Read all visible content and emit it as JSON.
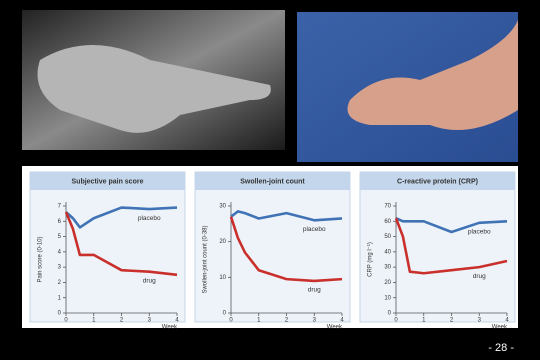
{
  "chart_data": [
    {
      "type": "line",
      "title": "Subjective pain score",
      "ylabel": "Pain score (0-10)",
      "xlabel": "Week",
      "x": [
        0,
        0.25,
        0.5,
        1,
        2,
        3,
        4
      ],
      "xlim": [
        0,
        4
      ],
      "xticks": [
        0,
        1,
        2,
        3,
        4
      ],
      "ylim": [
        0,
        7
      ],
      "yticks": [
        0,
        1,
        2,
        3,
        4,
        5,
        6,
        7
      ],
      "series": [
        {
          "name": "placebo",
          "color": "#3f73b5",
          "values": [
            6.6,
            6.2,
            5.6,
            6.2,
            6.9,
            6.8,
            6.9
          ]
        },
        {
          "name": "drug",
          "color": "#c9302c",
          "values": [
            6.6,
            5.5,
            3.8,
            3.8,
            2.8,
            2.7,
            2.5
          ]
        }
      ]
    },
    {
      "type": "line",
      "title": "Swollen-joint count",
      "ylabel": "Swollen-joint count (0-38)",
      "xlabel": "Week",
      "x": [
        0,
        0.25,
        0.5,
        1,
        2,
        3,
        4
      ],
      "xlim": [
        0,
        4
      ],
      "xticks": [
        0,
        1,
        2,
        3,
        4
      ],
      "ylim": [
        0,
        30
      ],
      "yticks": [
        0,
        10,
        20,
        30
      ],
      "series": [
        {
          "name": "placebo",
          "color": "#3f73b5",
          "values": [
            27,
            28.5,
            28,
            26.5,
            28,
            26,
            26.5
          ]
        },
        {
          "name": "drug",
          "color": "#c9302c",
          "values": [
            27,
            21,
            17,
            12,
            9.5,
            9,
            9.5
          ]
        }
      ]
    },
    {
      "type": "line",
      "title": "C-reactive protein (CRP)",
      "ylabel": "CRP (mg l⁻¹)",
      "xlabel": "Week",
      "x": [
        0,
        0.25,
        0.5,
        1,
        2,
        3,
        4
      ],
      "xlim": [
        0,
        4
      ],
      "xticks": [
        0,
        1,
        2,
        3,
        4
      ],
      "ylim": [
        0,
        70
      ],
      "yticks": [
        0,
        10,
        20,
        30,
        40,
        50,
        60,
        70
      ],
      "series": [
        {
          "name": "placebo",
          "color": "#3f73b5",
          "values": [
            62,
            60,
            60,
            60,
            53,
            59,
            60
          ]
        },
        {
          "name": "drug",
          "color": "#c9302c",
          "values": [
            62,
            50,
            27,
            26,
            28,
            30,
            34
          ]
        }
      ]
    }
  ],
  "page_number": "- 28 -"
}
